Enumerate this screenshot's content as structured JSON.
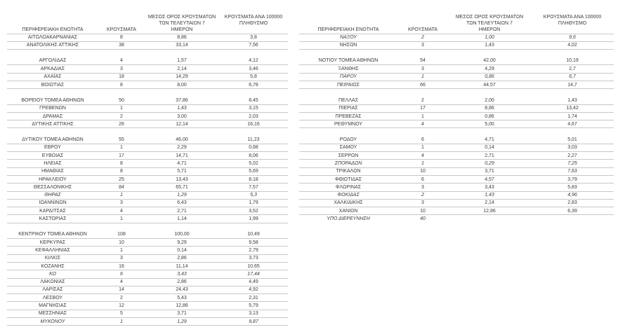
{
  "page": {
    "background": "#ffffff",
    "text_color": "#3b3b3b",
    "border_color": "#c8c8c8"
  },
  "table_headers": {
    "region": "ΠΕΡΙΦΕΡΕΙΑΚΗ ΕΝΟΤΗΤΑ",
    "cases": "ΚΡΟΥΣΜΑΤΑ",
    "avg7": "ΜΕΣΟΣ ΟΡΟΣ ΚΡΟΥΣΜΑΤΩΝ\nΤΩΝ ΤΕΛΕΥΤΑΙΩΝ 7\nΗΜΕΡΩΝ",
    "per100k": "ΚΡΟΥΣΜΑΤΑ ΑΝΑ 100000\nΠΛΗΘΥΣΜΟ"
  },
  "left_table": {
    "rows": [
      {
        "region": "ΑΙΤΩΛΟΑΚΑΡΝΑΝΙΑΣ",
        "cases": "8",
        "avg7": "8,86",
        "per100k": "3,8"
      },
      {
        "region": "ΑΝΑΤΟΛΙΚΗΣ ΑΤΤΙΚΗΣ",
        "cases": "38",
        "avg7": "33,14",
        "per100k": "7,56"
      },
      {
        "spacer": true
      },
      {
        "region": "ΑΡΓΟΛΙΔΑΣ",
        "cases": "4",
        "avg7": "1,57",
        "per100k": "4,12"
      },
      {
        "region": "ΑΡΚΑΔΙΑΣ",
        "cases": "3",
        "avg7": "2,14",
        "per100k": "3,46"
      },
      {
        "region": "ΑΧΑΪΑΣ",
        "cases": "18",
        "avg7": "14,29",
        "per100k": "5,8"
      },
      {
        "region": "ΒΟΙΩΤΙΑΣ",
        "cases": "8",
        "avg7": "8,00",
        "per100k": "6,78"
      },
      {
        "spacer": true
      },
      {
        "region": "ΒΟΡΕΙΟΥ ΤΟΜΕΑ ΑΘΗΝΩΝ",
        "cases": "50",
        "avg7": "37,86",
        "per100k": "8,45"
      },
      {
        "region": "ΓΡΕΒΕΝΩΝ",
        "cases": "1",
        "avg7": "1,43",
        "per100k": "3,15"
      },
      {
        "region": "ΔΡΑΜΑΣ",
        "cases": "2",
        "avg7": "3,00",
        "per100k": "2,03"
      },
      {
        "region": "ΔΥΤΙΚΗΣ ΑΤΤΙΚΗΣ",
        "cases": "26",
        "avg7": "12,14",
        "per100k": "16,16"
      },
      {
        "spacer": true
      },
      {
        "region": "ΔΥΤΙΚΟΥ ΤΟΜΕΑ ΑΘΗΝΩΝ",
        "cases": "55",
        "avg7": "46,00",
        "per100k": "11,23"
      },
      {
        "region": "ΕΒΡΟΥ",
        "cases": "1",
        "avg7": "2,29",
        "per100k": "0,68"
      },
      {
        "region": "ΕΥΒΟΙΑΣ",
        "cases": "17",
        "avg7": "14,71",
        "per100k": "8,06"
      },
      {
        "region": "ΗΛΕΙΑΣ",
        "cases": "8",
        "avg7": "4,71",
        "per100k": "5,02"
      },
      {
        "region": "ΗΜΑΘΙΑΣ",
        "cases": "8",
        "avg7": "5,71",
        "per100k": "5,69"
      },
      {
        "region": "ΗΡΑΚΛΕΙΟΥ",
        "cases": "25",
        "avg7": "13,43",
        "per100k": "8,18"
      },
      {
        "region": "ΘΕΣΣΑΛΟΝΙΚΗΣ",
        "cases": "84",
        "avg7": "65,71",
        "per100k": "7,57"
      },
      {
        "region": "ΘΗΡΑΣ",
        "cases": "1",
        "avg7": "1,29",
        "per100k": "5,3",
        "italic": true
      },
      {
        "region": "ΙΩΑΝΝΙΝΩΝ",
        "cases": "3",
        "avg7": "6,43",
        "per100k": "1,79"
      },
      {
        "region": "ΚΑΡΔΙΤΣΑΣ",
        "cases": "4",
        "avg7": "2,71",
        "per100k": "3,52"
      },
      {
        "region": "ΚΑΣΤΟΡΙΑΣ",
        "cases": "1",
        "avg7": "1,14",
        "per100k": "1,99"
      },
      {
        "spacer": true
      },
      {
        "region": "ΚΕΝΤΡΙΚΟΥ ΤΟΜΕΑ ΑΘΗΝΩΝ",
        "cases": "108",
        "avg7": "100,00",
        "per100k": "10,49"
      },
      {
        "region": "ΚΕΡΚΥΡΑΣ",
        "cases": "10",
        "avg7": "9,29",
        "per100k": "9,58"
      },
      {
        "region": "ΚΕΦΑΛΛΗΝΙΑΣ",
        "cases": "1",
        "avg7": "0,14",
        "per100k": "2,79"
      },
      {
        "region": "ΚΙΛΚΙΣ",
        "cases": "3",
        "avg7": "2,86",
        "per100k": "3,73"
      },
      {
        "region": "ΚΟΖΑΝΗΣ",
        "cases": "16",
        "avg7": "11,14",
        "per100k": "10,65"
      },
      {
        "region": "ΚΩ",
        "cases": "6",
        "avg7": "3,43",
        "per100k": "17,44",
        "italic": true
      },
      {
        "region": "ΛΑΚΩΝΙΑΣ",
        "cases": "4",
        "avg7": "2,86",
        "per100k": "4,49"
      },
      {
        "region": "ΛΑΡΙΣΑΣ",
        "cases": "14",
        "avg7": "24,43",
        "per100k": "4,92"
      },
      {
        "region": "ΛΕΣΒΟΥ",
        "cases": "2",
        "avg7": "5,43",
        "per100k": "2,31"
      },
      {
        "region": "ΜΑΓΝΗΣΙΑΣ",
        "cases": "12",
        "avg7": "12,86",
        "per100k": "5,79"
      },
      {
        "region": "ΜΕΣΣΗΝΙΑΣ",
        "cases": "5",
        "avg7": "3,71",
        "per100k": "3,13"
      },
      {
        "region": "ΜΥΚΟΝΟΥ",
        "cases": "1",
        "avg7": "1,29",
        "per100k": "9,87",
        "italic": true
      }
    ]
  },
  "right_table": {
    "rows": [
      {
        "region": "ΝΑΞΟΥ",
        "cases": "2",
        "avg7": "1,00",
        "per100k": "9,6",
        "italic": true
      },
      {
        "region": "ΝΗΣΩΝ",
        "cases": "3",
        "avg7": "1,43",
        "per100k": "4,02"
      },
      {
        "spacer": true
      },
      {
        "region": "ΝΟΤΙΟΥ ΤΟΜΕΑ ΑΘΗΝΩΝ",
        "cases": "54",
        "avg7": "42,00",
        "per100k": "10,19"
      },
      {
        "region": "ΞΑΝΘΗΣ",
        "cases": "3",
        "avg7": "4,29",
        "per100k": "2,7"
      },
      {
        "region": "ΠΑΡΟΥ",
        "cases": "1",
        "avg7": "0,86",
        "per100k": "6,7",
        "italic": true
      },
      {
        "region": "ΠΕΙΡΑΙΩΣ",
        "cases": "66",
        "avg7": "44,57",
        "per100k": "14,7"
      },
      {
        "spacer": true
      },
      {
        "region": "ΠΕΛΛΑΣ",
        "cases": "2",
        "avg7": "2,00",
        "per100k": "1,43"
      },
      {
        "region": "ΠΙΕΡΙΑΣ",
        "cases": "17",
        "avg7": "8,86",
        "per100k": "13,42"
      },
      {
        "region": "ΠΡΕΒΕΖΑΣ",
        "cases": "1",
        "avg7": "0,86",
        "per100k": "1,74"
      },
      {
        "region": "ΡΕΘΥΜΝΟΥ",
        "cases": "4",
        "avg7": "5,00",
        "per100k": "4,67"
      },
      {
        "spacer": true
      },
      {
        "region": "ΡΟΔΟΥ",
        "cases": "6",
        "avg7": "4,71",
        "per100k": "5,01"
      },
      {
        "region": "ΣΑΜΟΥ",
        "cases": "1",
        "avg7": "0,14",
        "per100k": "3,03"
      },
      {
        "region": "ΣΕΡΡΩΝ",
        "cases": "4",
        "avg7": "2,71",
        "per100k": "2,27"
      },
      {
        "region": "ΣΠΟΡΑΔΩΝ",
        "cases": "1",
        "avg7": "0,29",
        "per100k": "7,25",
        "italic": true
      },
      {
        "region": "ΤΡΙΚΑΛΩΝ",
        "cases": "10",
        "avg7": "3,71",
        "per100k": "7,63"
      },
      {
        "region": "ΦΘΙΩΤΙΔΑΣ",
        "cases": "6",
        "avg7": "4,57",
        "per100k": "3,79"
      },
      {
        "region": "ΦΛΩΡΙΝΑΣ",
        "cases": "3",
        "avg7": "3,43",
        "per100k": "5,83"
      },
      {
        "region": "ΦΩΚΙΔΑΣ",
        "cases": "2",
        "avg7": "1,43",
        "per100k": "4,96",
        "italic": true
      },
      {
        "region": "ΧΑΛΚΙΔΙΚΗΣ",
        "cases": "3",
        "avg7": "2,14",
        "per100k": "2,83"
      },
      {
        "region": "ΧΑΝΙΩΝ",
        "cases": "10",
        "avg7": "12,86",
        "per100k": "6,39"
      },
      {
        "region": "ΥΠΟ ΔΙΕΡΕΥΝΗΣΗ",
        "cases": "40",
        "avg7": "",
        "per100k": "",
        "italic": true
      }
    ]
  }
}
